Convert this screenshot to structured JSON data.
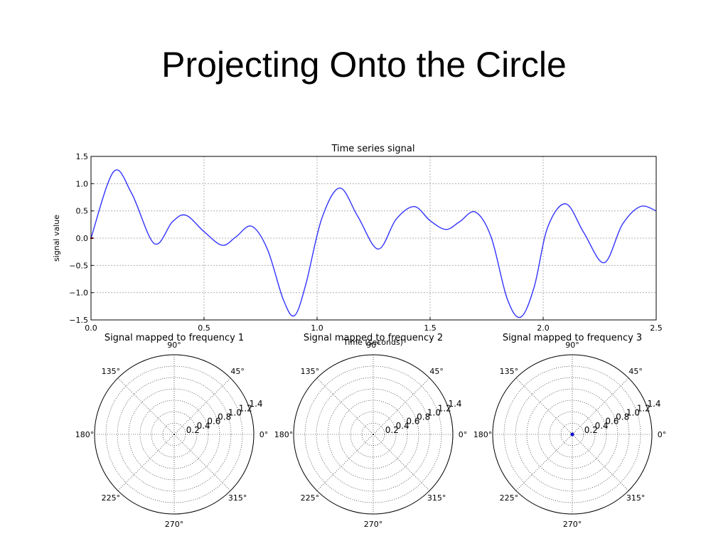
{
  "slide": {
    "title": "Projecting Onto the Circle"
  },
  "colors": {
    "signal": "#3333ff",
    "marker_start": "#cc0000",
    "polar_point": "#0000cc",
    "grid": "#b0b0b0"
  },
  "chart_data": [
    {
      "type": "line",
      "title": "Time series signal",
      "xlabel": "Time (seconds)",
      "ylabel": "signal value",
      "xlim": [
        0,
        2.5
      ],
      "ylim": [
        -1.5,
        1.5
      ],
      "xticks": [
        "0.0",
        "0.5",
        "1.0",
        "1.5",
        "2.0",
        "2.5"
      ],
      "yticks": [
        "1.5",
        "1.0",
        "0.5",
        "0.0",
        "−0.5",
        "−1.0",
        "−1.5"
      ],
      "grid": true,
      "series": [
        {
          "x": [
            0.0,
            0.1,
            0.18,
            0.28,
            0.36,
            0.42,
            0.5,
            0.58,
            0.64,
            0.71,
            0.78,
            0.85,
            0.9,
            0.95,
            1.02,
            1.1,
            1.18,
            1.27,
            1.35,
            1.43,
            1.5,
            1.57,
            1.63,
            1.7,
            1.77,
            1.84,
            1.9,
            1.96,
            2.02,
            2.1,
            2.18,
            2.27,
            2.35,
            2.43,
            2.5
          ],
          "y": [
            0.0,
            1.22,
            0.82,
            -0.1,
            0.3,
            0.42,
            0.12,
            -0.13,
            0.02,
            0.22,
            -0.2,
            -1.12,
            -1.42,
            -0.85,
            0.35,
            0.92,
            0.4,
            -0.2,
            0.35,
            0.58,
            0.32,
            0.16,
            0.3,
            0.48,
            0.02,
            -1.1,
            -1.45,
            -0.9,
            0.2,
            0.63,
            0.1,
            -0.45,
            0.25,
            0.58,
            0.5
          ]
        }
      ]
    },
    {
      "type": "polar",
      "title": "Signal mapped to frequency 1",
      "angle_labels": [
        "0°",
        "45°",
        "90°",
        "135°",
        "180°",
        "225°",
        "270°",
        "315°"
      ],
      "radial_labels": [
        "0.2",
        "0.4",
        "0.6",
        "0.8",
        "1.0",
        "1.2",
        "1.4"
      ],
      "rmax": 1.4,
      "points": []
    },
    {
      "type": "polar",
      "title": "Signal mapped to frequency 2",
      "angle_labels": [
        "0°",
        "45°",
        "90°",
        "135°",
        "180°",
        "225°",
        "270°",
        "315°"
      ],
      "radial_labels": [
        "0.2",
        "0.4",
        "0.6",
        "0.8",
        "1.0",
        "1.2",
        "1.4"
      ],
      "rmax": 1.4,
      "points": []
    },
    {
      "type": "polar",
      "title": "Signal mapped to frequency 3",
      "angle_labels": [
        "0°",
        "45°",
        "90°",
        "135°",
        "180°",
        "225°",
        "270°",
        "315°"
      ],
      "radial_labels": [
        "0.2",
        "0.4",
        "0.6",
        "0.8",
        "1.0",
        "1.2",
        "1.4"
      ],
      "rmax": 1.4,
      "points": [
        {
          "r": 0.0,
          "theta": 0
        }
      ]
    }
  ]
}
